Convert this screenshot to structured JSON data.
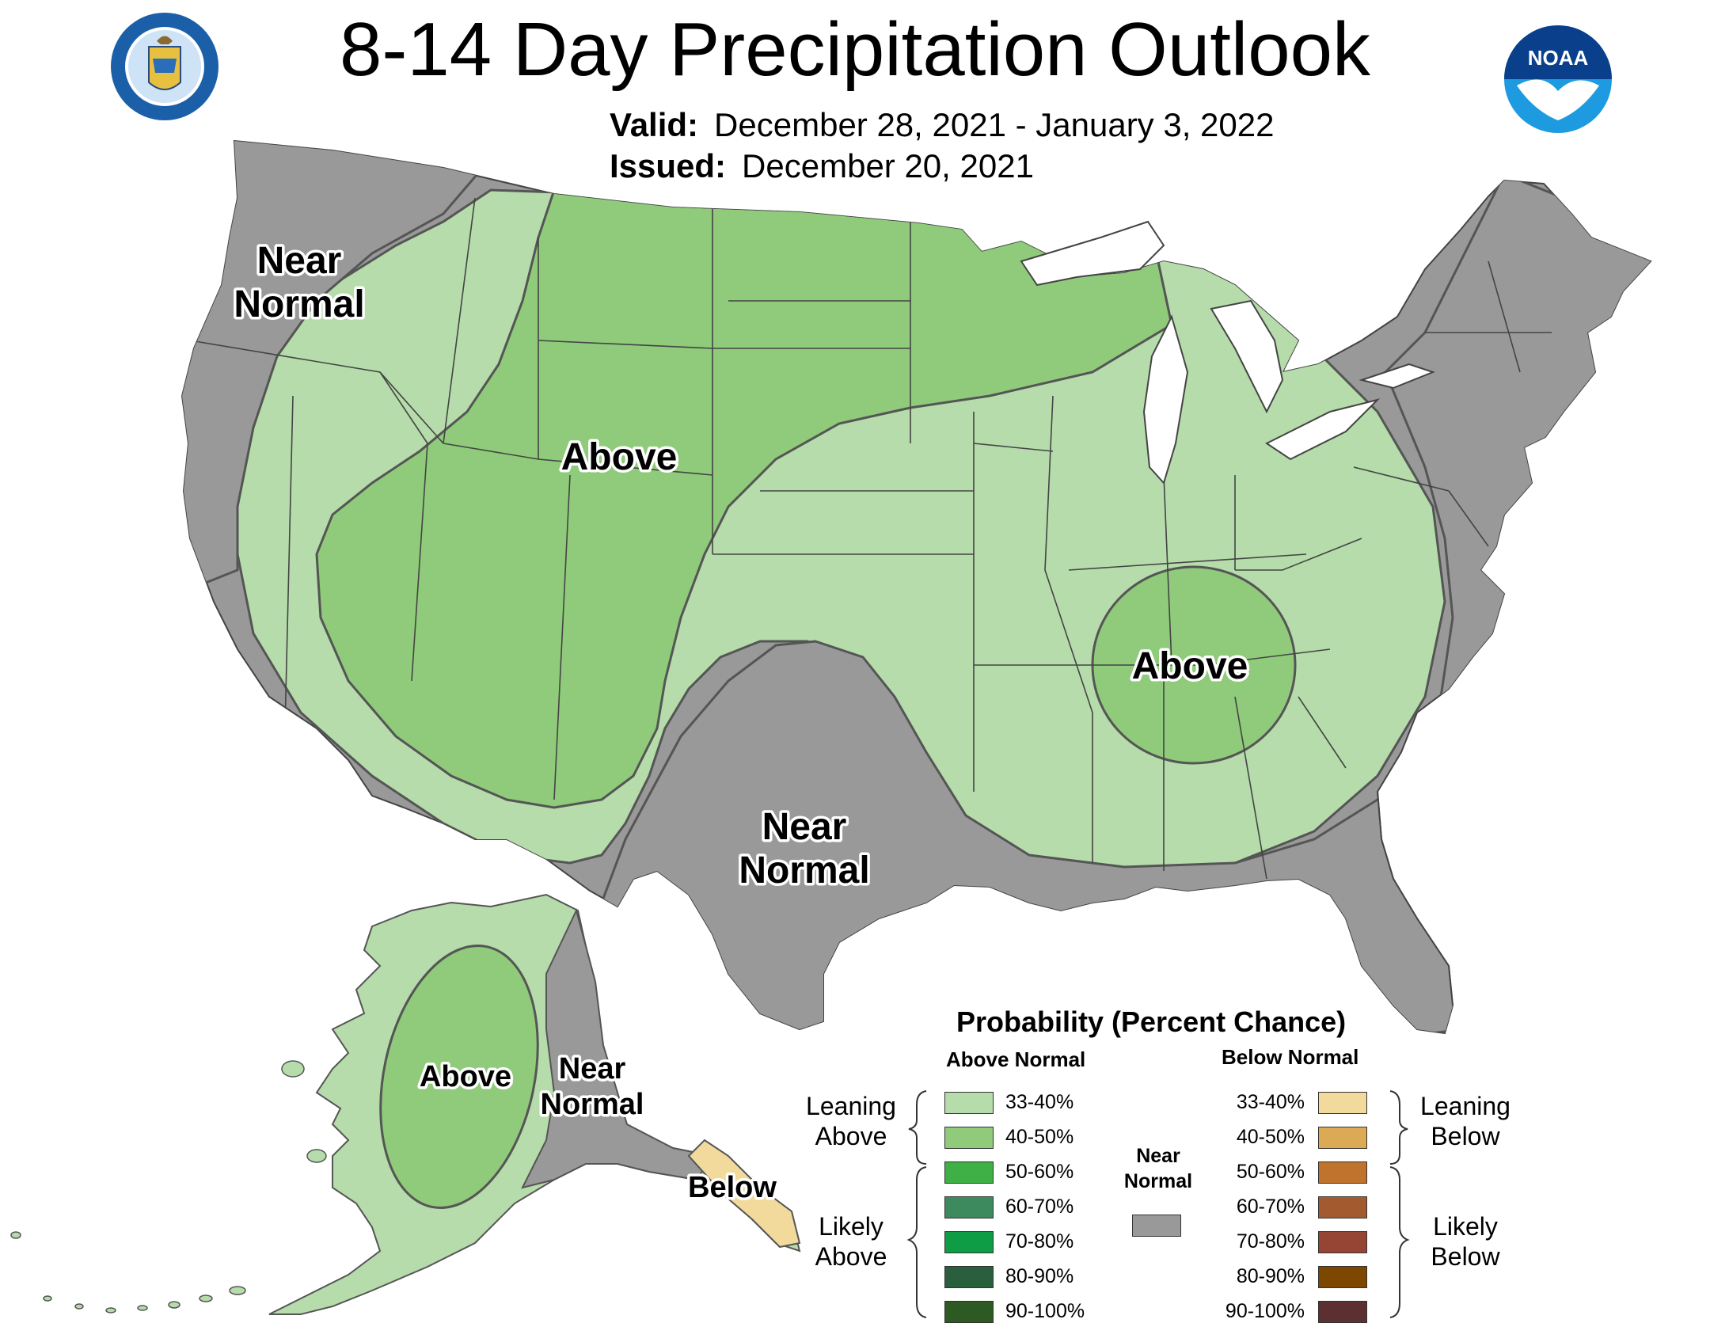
{
  "title": "8-14 Day Precipitation Outlook",
  "valid_label": "Valid:",
  "valid_value": "December 28, 2021 - January 3, 2022",
  "issued_label": "Issued:",
  "issued_value": "December 20, 2021",
  "logos": {
    "left": "DEPARTMENT OF COMMERCE - UNITED STATES OF AMERICA",
    "right": "NOAA"
  },
  "map_labels": {
    "west_near_normal": [
      "Near",
      "Normal"
    ],
    "rockies_above": "Above",
    "tennessee_above": "Above",
    "texas_near_normal": [
      "Near",
      "Normal"
    ],
    "alaska_above": "Above",
    "alaska_near_normal": [
      "Near",
      "Normal"
    ],
    "alaska_below": "Below"
  },
  "legend": {
    "title": "Probability (Percent Chance)",
    "above_header": "Above Normal",
    "below_header": "Below Normal",
    "near_label": [
      "Near",
      "Normal"
    ],
    "leaning_above": [
      "Leaning",
      "Above"
    ],
    "likely_above": [
      "Likely",
      "Above"
    ],
    "leaning_below": [
      "Leaning",
      "Below"
    ],
    "likely_below": [
      "Likely",
      "Below"
    ],
    "above": [
      {
        "range": "33-40%",
        "color": "#b5dcaa"
      },
      {
        "range": "40-50%",
        "color": "#8fcb7a"
      },
      {
        "range": "50-60%",
        "color": "#3fb045"
      },
      {
        "range": "60-70%",
        "color": "#3c8a5e"
      },
      {
        "range": "70-80%",
        "color": "#0e9c44"
      },
      {
        "range": "80-90%",
        "color": "#2a5f3d"
      },
      {
        "range": "90-100%",
        "color": "#2d5a22"
      }
    ],
    "below": [
      {
        "range": "33-40%",
        "color": "#f2d99c"
      },
      {
        "range": "40-50%",
        "color": "#dcaa55"
      },
      {
        "range": "50-60%",
        "color": "#c0732d"
      },
      {
        "range": "60-70%",
        "color": "#a35a2e"
      },
      {
        "range": "70-80%",
        "color": "#964535"
      },
      {
        "range": "80-90%",
        "color": "#7d4700"
      },
      {
        "range": "90-100%",
        "color": "#5c3030"
      }
    ],
    "near_color": "#999999"
  },
  "colors": {
    "near_normal": "#999999",
    "above_33_40": "#b5dcaa",
    "above_40_50": "#8fcb7a",
    "below_33_40": "#f2d99c",
    "borders": "#555555"
  }
}
